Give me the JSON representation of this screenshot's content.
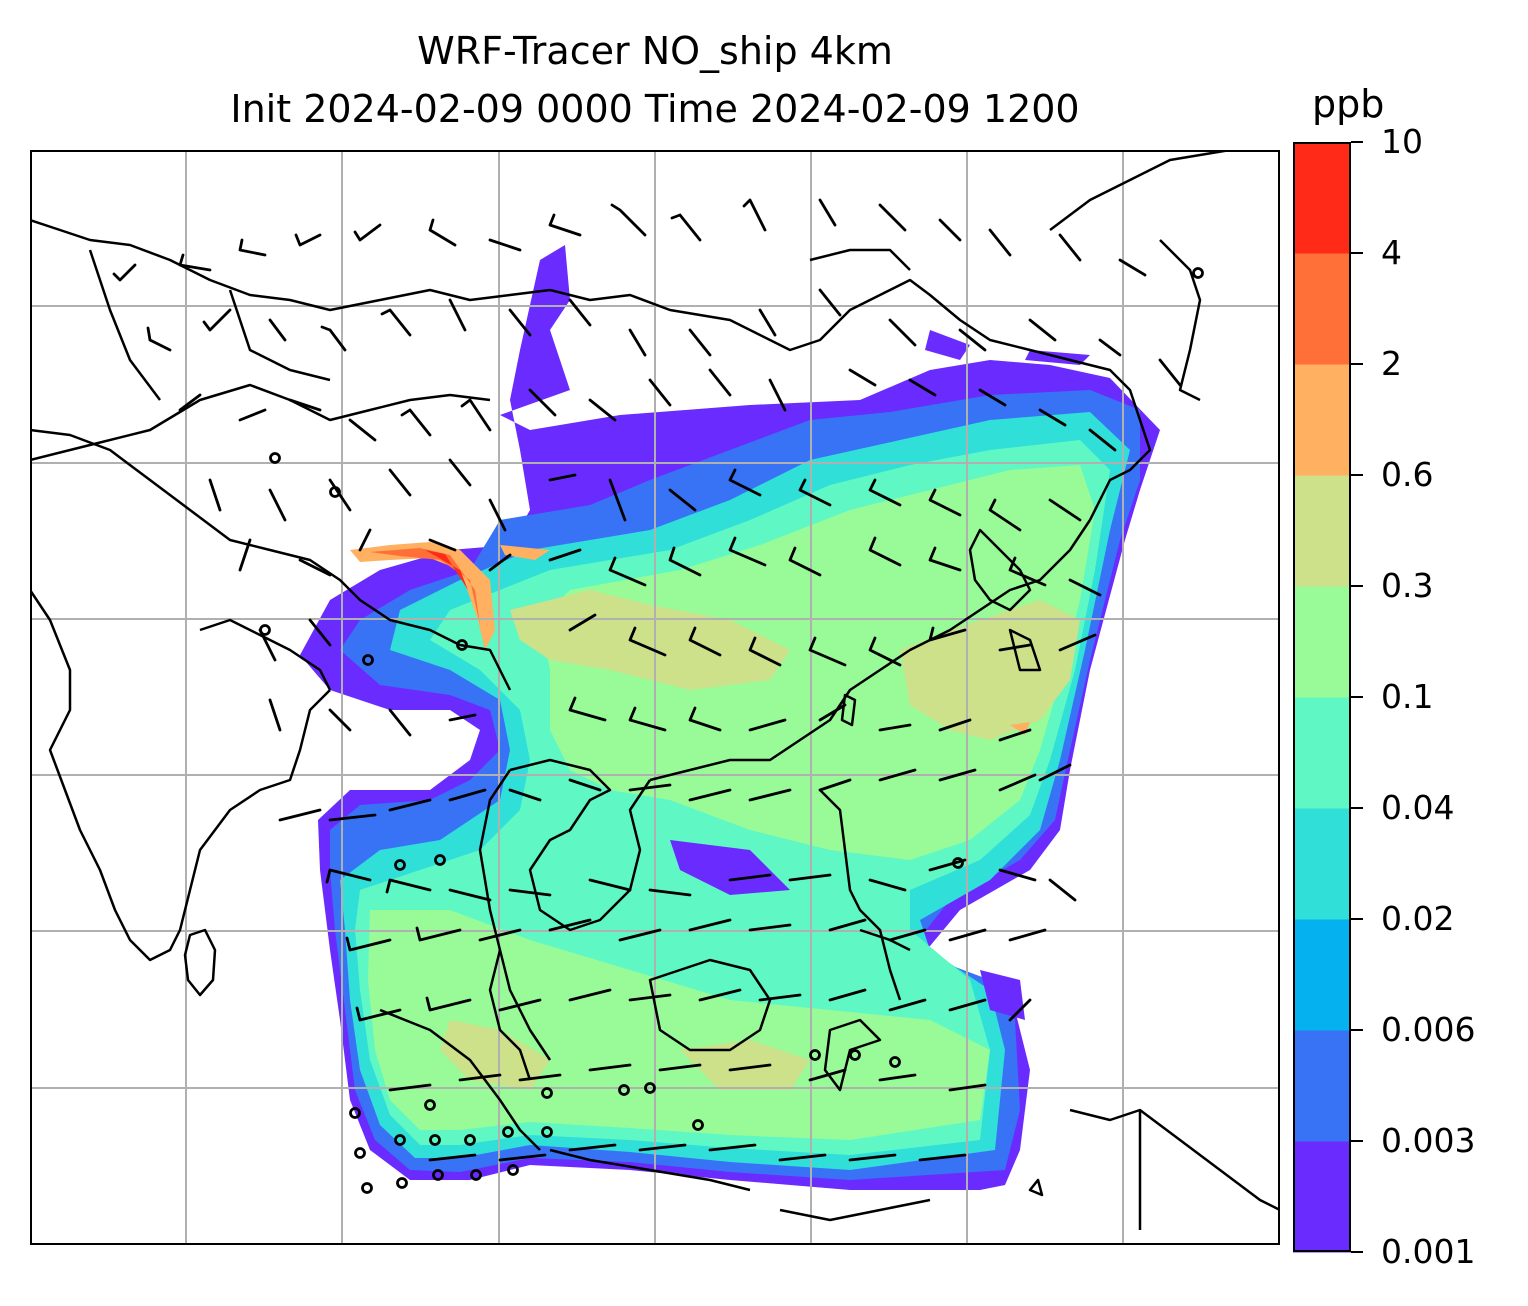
{
  "title": {
    "line1": "WRF-Tracer NO_ship 4km",
    "line2": "Init 2024-02-09 0000 Time 2024-02-09 1200"
  },
  "colorbar": {
    "unit": "ppb",
    "ticks": [
      "0.001",
      "0.003",
      "0.006",
      "0.02",
      "0.04",
      "0.1",
      "0.3",
      "0.6",
      "2",
      "4",
      "10"
    ],
    "colors": [
      "#6a2bff",
      "#3873f5",
      "#05b1ee",
      "#2fdfd8",
      "#5ff8c4",
      "#98fb98",
      "#cde08a",
      "#ffb060",
      "#ff7038",
      "#ff2a17"
    ]
  },
  "map": {
    "background": "#ffffff",
    "coastline_color": "#000000",
    "gridline_color": "#b0b0b0",
    "wind_barb_color": "#000000"
  }
}
